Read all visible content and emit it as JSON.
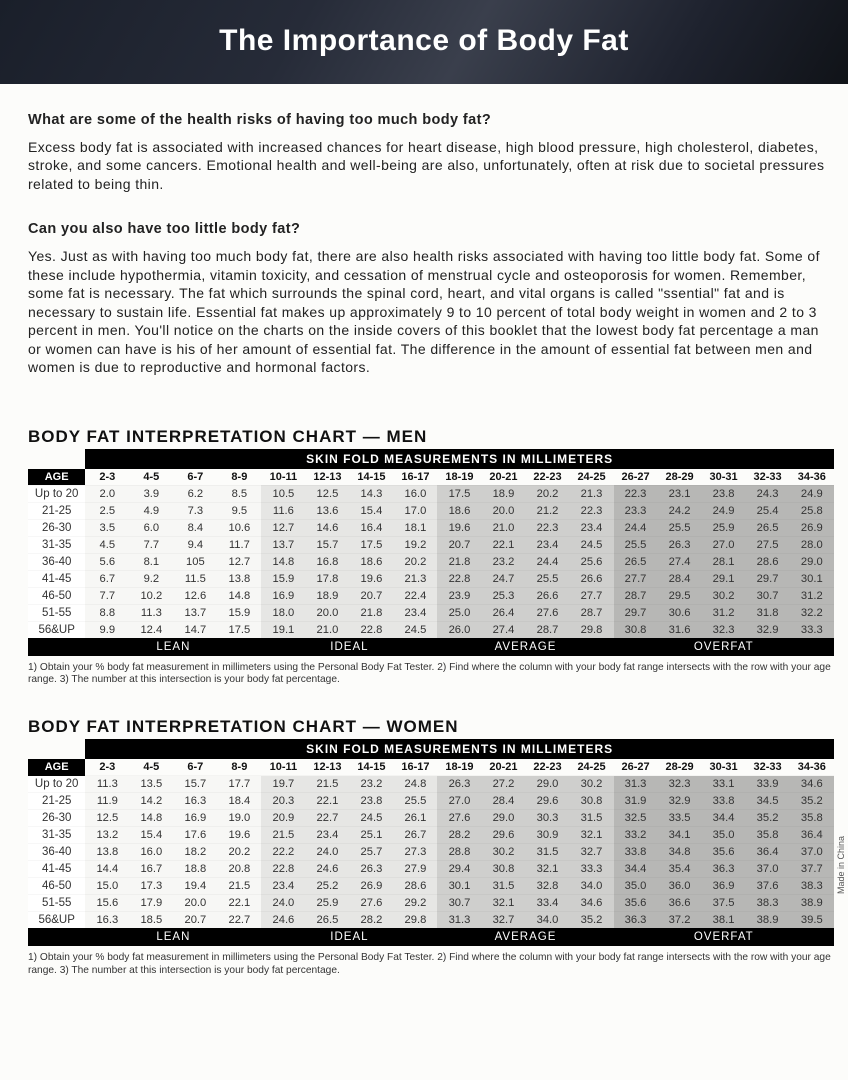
{
  "header": {
    "title": "The Importance of Body Fat"
  },
  "qa": [
    {
      "q": "What are some of the health risks of having too much body fat?",
      "a": "Excess body fat is associated with increased chances for heart disease, high blood pressure, high cholesterol, diabetes, stroke, and some cancers. Emotional health and well-being are also, unfortunately, often at risk due to societal pressures related to being thin."
    },
    {
      "q": "Can you also have too little body fat?",
      "a": "Yes. Just as with having too much body fat, there are also health risks associated with having too little body fat. Some of these include hypothermia, vitamin toxicity, and cessation of menstrual cycle and osteoporosis for women. Remember, some fat is necessary. The fat which surrounds the spinal cord, heart, and vital organs is called \"ssential\" fat and is necessary to sustain life. Essential fat makes up approximately 9 to 10 percent of total body weight in women and 2 to 3 percent in men. You'll notice on the charts on the inside covers of this booklet that the lowest body fat percentage a man or women can have is his of her amount of essential fat. The difference in the amount of essential fat between men and women is due to reproductive and hormonal factors."
    }
  ],
  "notes": "1) Obtain your % body fat measurement in millimeters using the Personal Body Fat Tester. 2) Find where the column with your body fat range intersects with the row with your age range. 3) The number at this intersection is your body fat percentage.",
  "side_label": "Made in China",
  "columns_header": "SKIN FOLD MEASUREMENTS IN MILLIMETERS",
  "skin_fold_ranges": [
    "2-3",
    "4-5",
    "6-7",
    "8-9",
    "10-11",
    "12-13",
    "14-15",
    "16-17",
    "18-19",
    "20-21",
    "22-23",
    "24-25",
    "26-27",
    "28-29",
    "30-31",
    "32-33",
    "34-36"
  ],
  "age_col_label": "AGE",
  "footer_bands": [
    "LEAN",
    "IDEAL",
    "AVERAGE",
    "OVERFAT"
  ],
  "band_spans": {
    "age": 1,
    "lean": 4,
    "ideal": 4,
    "average": 4,
    "overfat": 5
  },
  "shading": {
    "lean_end": 4,
    "ideal_end": 8,
    "average_end": 12
  },
  "charts": [
    {
      "title": "BODY FAT INTERPRETATION CHART — MEN",
      "rows": [
        {
          "age": "Up to 20",
          "v": [
            "2.0",
            "3.9",
            "6.2",
            "8.5",
            "10.5",
            "12.5",
            "14.3",
            "16.0",
            "17.5",
            "18.9",
            "20.2",
            "21.3",
            "22.3",
            "23.1",
            "23.8",
            "24.3",
            "24.9"
          ]
        },
        {
          "age": "21-25",
          "v": [
            "2.5",
            "4.9",
            "7.3",
            "9.5",
            "11.6",
            "13.6",
            "15.4",
            "17.0",
            "18.6",
            "20.0",
            "21.2",
            "22.3",
            "23.3",
            "24.2",
            "24.9",
            "25.4",
            "25.8"
          ]
        },
        {
          "age": "26-30",
          "v": [
            "3.5",
            "6.0",
            "8.4",
            "10.6",
            "12.7",
            "14.6",
            "16.4",
            "18.1",
            "19.6",
            "21.0",
            "22.3",
            "23.4",
            "24.4",
            "25.5",
            "25.9",
            "26.5",
            "26.9"
          ]
        },
        {
          "age": "31-35",
          "v": [
            "4.5",
            "7.7",
            "9.4",
            "11.7",
            "13.7",
            "15.7",
            "17.5",
            "19.2",
            "20.7",
            "22.1",
            "23.4",
            "24.5",
            "25.5",
            "26.3",
            "27.0",
            "27.5",
            "28.0"
          ]
        },
        {
          "age": "36-40",
          "v": [
            "5.6",
            "8.1",
            "105",
            "12.7",
            "14.8",
            "16.8",
            "18.6",
            "20.2",
            "21.8",
            "23.2",
            "24.4",
            "25.6",
            "26.5",
            "27.4",
            "28.1",
            "28.6",
            "29.0"
          ]
        },
        {
          "age": "41-45",
          "v": [
            "6.7",
            "9.2",
            "11.5",
            "13.8",
            "15.9",
            "17.8",
            "19.6",
            "21.3",
            "22.8",
            "24.7",
            "25.5",
            "26.6",
            "27.7",
            "28.4",
            "29.1",
            "29.7",
            "30.1"
          ]
        },
        {
          "age": "46-50",
          "v": [
            "7.7",
            "10.2",
            "12.6",
            "14.8",
            "16.9",
            "18.9",
            "20.7",
            "22.4",
            "23.9",
            "25.3",
            "26.6",
            "27.7",
            "28.7",
            "29.5",
            "30.2",
            "30.7",
            "31.2"
          ]
        },
        {
          "age": "51-55",
          "v": [
            "8.8",
            "11.3",
            "13.7",
            "15.9",
            "18.0",
            "20.0",
            "21.8",
            "23.4",
            "25.0",
            "26.4",
            "27.6",
            "28.7",
            "29.7",
            "30.6",
            "31.2",
            "31.8",
            "32.2"
          ]
        },
        {
          "age": "56&UP",
          "v": [
            "9.9",
            "12.4",
            "14.7",
            "17.5",
            "19.1",
            "21.0",
            "22.8",
            "24.5",
            "26.0",
            "27.4",
            "28.7",
            "29.8",
            "30.8",
            "31.6",
            "32.3",
            "32.9",
            "33.3"
          ]
        }
      ]
    },
    {
      "title": "BODY FAT INTERPRETATION CHART — WOMEN",
      "rows": [
        {
          "age": "Up to 20",
          "v": [
            "11.3",
            "13.5",
            "15.7",
            "17.7",
            "19.7",
            "21.5",
            "23.2",
            "24.8",
            "26.3",
            "27.2",
            "29.0",
            "30.2",
            "31.3",
            "32.3",
            "33.1",
            "33.9",
            "34.6"
          ]
        },
        {
          "age": "21-25",
          "v": [
            "11.9",
            "14.2",
            "16.3",
            "18.4",
            "20.3",
            "22.1",
            "23.8",
            "25.5",
            "27.0",
            "28.4",
            "29.6",
            "30.8",
            "31.9",
            "32.9",
            "33.8",
            "34.5",
            "35.2"
          ]
        },
        {
          "age": "26-30",
          "v": [
            "12.5",
            "14.8",
            "16.9",
            "19.0",
            "20.9",
            "22.7",
            "24.5",
            "26.1",
            "27.6",
            "29.0",
            "30.3",
            "31.5",
            "32.5",
            "33.5",
            "34.4",
            "35.2",
            "35.8"
          ]
        },
        {
          "age": "31-35",
          "v": [
            "13.2",
            "15.4",
            "17.6",
            "19.6",
            "21.5",
            "23.4",
            "25.1",
            "26.7",
            "28.2",
            "29.6",
            "30.9",
            "32.1",
            "33.2",
            "34.1",
            "35.0",
            "35.8",
            "36.4"
          ]
        },
        {
          "age": "36-40",
          "v": [
            "13.8",
            "16.0",
            "18.2",
            "20.2",
            "22.2",
            "24.0",
            "25.7",
            "27.3",
            "28.8",
            "30.2",
            "31.5",
            "32.7",
            "33.8",
            "34.8",
            "35.6",
            "36.4",
            "37.0"
          ]
        },
        {
          "age": "41-45",
          "v": [
            "14.4",
            "16.7",
            "18.8",
            "20.8",
            "22.8",
            "24.6",
            "26.3",
            "27.9",
            "29.4",
            "30.8",
            "32.1",
            "33.3",
            "34.4",
            "35.4",
            "36.3",
            "37.0",
            "37.7"
          ]
        },
        {
          "age": "46-50",
          "v": [
            "15.0",
            "17.3",
            "19.4",
            "21.5",
            "23.4",
            "25.2",
            "26.9",
            "28.6",
            "30.1",
            "31.5",
            "32.8",
            "34.0",
            "35.0",
            "36.0",
            "36.9",
            "37.6",
            "38.3"
          ]
        },
        {
          "age": "51-55",
          "v": [
            "15.6",
            "17.9",
            "20.0",
            "22.1",
            "24.0",
            "25.9",
            "27.6",
            "29.2",
            "30.7",
            "32.1",
            "33.4",
            "34.6",
            "35.6",
            "36.6",
            "37.5",
            "38.3",
            "38.9"
          ]
        },
        {
          "age": "56&UP",
          "v": [
            "16.3",
            "18.5",
            "20.7",
            "22.7",
            "24.6",
            "26.5",
            "28.2",
            "29.8",
            "31.3",
            "32.7",
            "34.0",
            "35.2",
            "36.3",
            "37.2",
            "38.1",
            "38.9",
            "39.5"
          ]
        }
      ]
    }
  ]
}
